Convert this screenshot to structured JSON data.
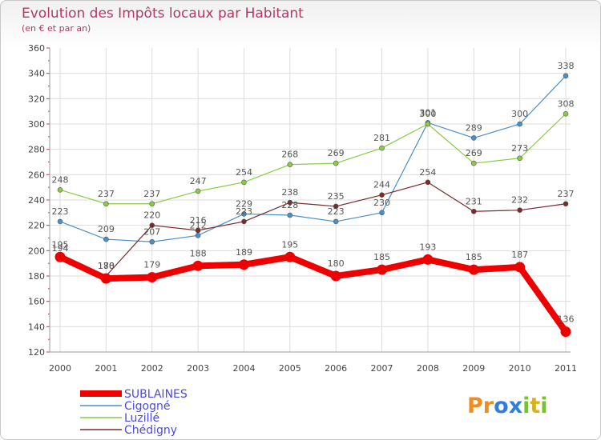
{
  "chart_data": {
    "type": "line",
    "title": "Evolution des Impôts locaux par Habitant",
    "subtitle": "(en € et par an)",
    "x": [
      "2000",
      "2001",
      "2002",
      "2003",
      "2004",
      "2005",
      "2006",
      "2007",
      "2008",
      "2009",
      "2010",
      "2011"
    ],
    "ylim": [
      120,
      360
    ],
    "yticks": [
      120,
      140,
      160,
      180,
      200,
      220,
      240,
      260,
      280,
      300,
      320,
      340,
      360
    ],
    "grid": true,
    "series": [
      {
        "name": "SUBLAINES",
        "color": "#ee0000",
        "values": [
          195,
          178,
          179,
          188,
          189,
          195,
          180,
          185,
          193,
          185,
          187,
          136
        ]
      },
      {
        "name": "Cigogné",
        "color": "#4a90c8",
        "values": [
          223,
          209,
          207,
          212,
          229,
          228,
          223,
          230,
          301,
          289,
          300,
          338
        ]
      },
      {
        "name": "Luzillé",
        "color": "#88cc44",
        "values": [
          248,
          237,
          237,
          247,
          254,
          268,
          269,
          281,
          300,
          269,
          273,
          308
        ]
      },
      {
        "name": "Chédigny",
        "color": "#7a2a2a",
        "values": [
          194,
          180,
          220,
          216,
          223,
          238,
          235,
          244,
          254,
          231,
          232,
          237
        ]
      }
    ]
  },
  "branding": {
    "logo_text": "Proxiti",
    "logo_letters": [
      "P",
      "r",
      "o",
      "x",
      "i",
      "t",
      "i"
    ],
    "logo_colors": [
      "#f28c1e",
      "#f28c1e",
      "#2f7fd8",
      "#2f7fd8",
      "#78c034",
      "#d8b020",
      "#78c034"
    ]
  }
}
